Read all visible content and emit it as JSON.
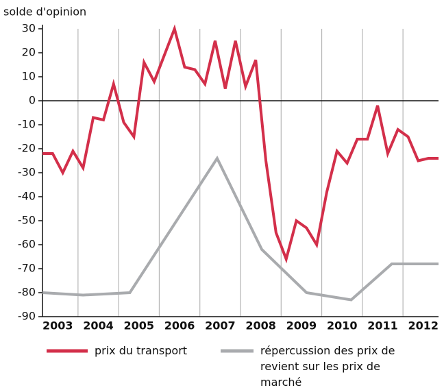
{
  "chart_data": {
    "type": "line",
    "ylabel": "solde d'opinion",
    "xlim": [
      2003,
      2012.75
    ],
    "ylim": [
      -90,
      30
    ],
    "yticks": [
      30,
      20,
      10,
      0,
      -10,
      -20,
      -30,
      -40,
      -50,
      -60,
      -70,
      -80,
      -90
    ],
    "xticks": [
      2003,
      2004,
      2005,
      2006,
      2007,
      2008,
      2009,
      2010,
      2011,
      2012
    ],
    "grid": true,
    "series": [
      {
        "name": "prix du transport",
        "color": "#d32f4a",
        "x": [
          2003,
          2003.25,
          2003.5,
          2003.75,
          2004,
          2004.25,
          2004.5,
          2004.75,
          2005,
          2005.25,
          2005.5,
          2005.75,
          2006,
          2006.25,
          2006.5,
          2006.75,
          2007,
          2007.25,
          2007.5,
          2007.75,
          2008,
          2008.25,
          2008.5,
          2008.75,
          2009,
          2009.25,
          2009.5,
          2009.75,
          2010,
          2010.25,
          2010.5,
          2010.75,
          2011,
          2011.25,
          2011.5,
          2011.75,
          2012,
          2012.25,
          2012.5,
          2012.75
        ],
        "values": [
          -22,
          -22,
          -30,
          -21,
          -28,
          -7,
          -8,
          7,
          -9,
          -15,
          16,
          8,
          19,
          30,
          14,
          13,
          7,
          25,
          5,
          25,
          6,
          17,
          -25,
          -55,
          -66,
          -50,
          -53,
          -60,
          -38,
          -21,
          -26,
          -16,
          -16,
          -2,
          -22,
          -12,
          -15,
          -25,
          -24,
          -24
        ]
      },
      {
        "name": "répercussion des prix de revient sur les prix de marché",
        "color": "#a9abae",
        "x": [
          2003,
          2004,
          2005.15,
          2007.3,
          2008.4,
          2009.5,
          2010.6,
          2011.6,
          2012.75
        ],
        "values": [
          -80,
          -81,
          -80,
          -24,
          -62,
          -80,
          -83,
          -68,
          -68
        ]
      }
    ]
  }
}
